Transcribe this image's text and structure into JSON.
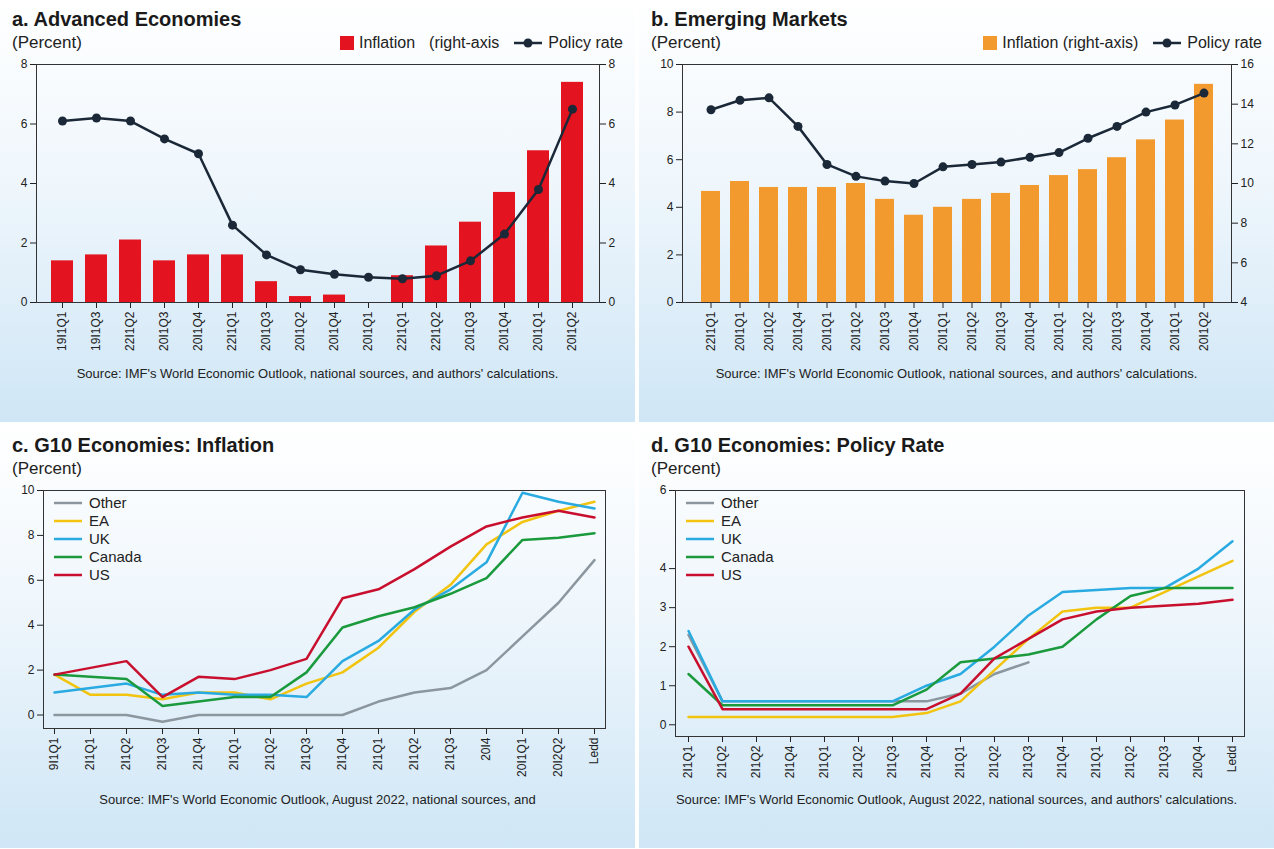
{
  "chart_data": [
    {
      "type": "bar",
      "title": "a. Advanced Economies",
      "subtitle": "(Percent)",
      "caption": "Source: IMF's World Economic Outlook, national sources, and authors' calculations.",
      "annotations": [
        "(right-axis"
      ],
      "categories": [
        "19I1Q1",
        "19I1Q3",
        "22I1Q2",
        "20I1Q3",
        "20I1Q4",
        "22I1Q1",
        "20I1Q3",
        "20I1Q2",
        "20I1Q4",
        "20I1Q1",
        "22I1Q1",
        "22I1Q2",
        "20I1Q3",
        "20I1Q4",
        "20I1Q1",
        "20I1Q2"
      ],
      "series": [
        {
          "name": "Inflation",
          "type": "bar",
          "axis": "y2",
          "color": "#e3141f",
          "values": [
            1.4,
            1.6,
            2.1,
            1.4,
            1.6,
            1.6,
            0.7,
            0.2,
            0.25,
            0,
            0.9,
            1.9,
            2.7,
            3.7,
            5.1,
            7.4
          ]
        },
        {
          "name": "Policy rate",
          "type": "line",
          "marker": "circle",
          "color": "#1b2838",
          "values": [
            6.1,
            6.2,
            6.1,
            5.5,
            5.0,
            2.6,
            1.6,
            1.1,
            0.95,
            0.85,
            0.8,
            0.9,
            1.4,
            2.3,
            3.8,
            6.5
          ]
        }
      ],
      "ylim": [
        0,
        8
      ],
      "yticks": [
        0,
        2,
        4,
        6,
        8
      ],
      "y2lim": [
        0,
        8
      ],
      "y2ticks": [
        0,
        2,
        4,
        6,
        8
      ],
      "grid": false,
      "legend": "top-right"
    },
    {
      "type": "bar",
      "title": "b. Emerging Markets",
      "subtitle": "(Percent)",
      "caption": "Source: IMF's World Economic Outlook, national sources, and authors' calculations.",
      "categories": [
        "22I1Q1",
        "20I1Q1",
        "20I1Q2",
        "20I1Q4",
        "20I1Q1",
        "20I1Q2",
        "20I1Q3",
        "20I1Q4",
        "20I1Q1",
        "20I1Q2",
        "20I1Q3",
        "20I1Q4",
        "20I1Q1",
        "20I1Q2",
        "20I1Q3",
        "20I1Q4",
        "20I1Q1",
        "20I1Q2"
      ],
      "series": [
        {
          "name": "Inflation (right-axis)",
          "type": "bar",
          "axis": "y2",
          "color": "#f39a2e",
          "values": [
            9.6,
            10.1,
            9.8,
            9.8,
            9.8,
            10.0,
            9.2,
            8.4,
            8.8,
            9.2,
            9.5,
            9.9,
            10.4,
            10.7,
            11.3,
            12.2,
            13.2,
            15.0
          ]
        },
        {
          "name": "Policy rate",
          "type": "line",
          "marker": "circle",
          "color": "#1b2838",
          "values": [
            8.1,
            8.5,
            8.6,
            7.4,
            5.8,
            5.3,
            5.1,
            5.0,
            5.7,
            5.8,
            5.9,
            6.1,
            6.3,
            6.9,
            7.4,
            8.0,
            8.3,
            8.8
          ]
        }
      ],
      "ylim": [
        0,
        10
      ],
      "yticks": [
        0,
        2,
        4,
        6,
        8,
        10
      ],
      "y2lim": [
        4,
        16
      ],
      "y2ticks": [
        4,
        6,
        8,
        10,
        12,
        14,
        16
      ],
      "grid": false,
      "legend": "top-right"
    },
    {
      "type": "line",
      "title": "c. G10 Economies: Inflation",
      "subtitle": "(Percent)",
      "caption": "Source: IMF's World Economic Outlook, August 2022, national sources, and",
      "categories": [
        "9I1Q1",
        "2I1Q1",
        "2I1Q2",
        "2I1Q3",
        "2I1Q4",
        "2I1Q1",
        "2I1Q2",
        "2I1Q3",
        "2I1Q4",
        "2I1Q1",
        "2I1Q2",
        "2I1Q3",
        "20I4",
        "20I1Q1",
        "20I2Q2",
        "Ledd"
      ],
      "series": [
        {
          "name": "Other",
          "color": "#8c969f",
          "values": [
            0,
            0,
            0,
            -0.3,
            0,
            0,
            0,
            0,
            0,
            0.6,
            1.0,
            1.2,
            2.0,
            3.5,
            5.0,
            6.9
          ]
        },
        {
          "name": "EA",
          "color": "#f2c40f",
          "values": [
            1.8,
            0.9,
            0.9,
            0.7,
            1.0,
            1.0,
            0.7,
            1.4,
            1.9,
            3.0,
            4.6,
            5.8,
            7.6,
            8.6,
            9.1,
            9.5
          ]
        },
        {
          "name": "UK",
          "color": "#29abe2",
          "values": [
            1.0,
            1.2,
            1.4,
            0.9,
            1.0,
            0.9,
            0.9,
            0.8,
            2.4,
            3.3,
            4.7,
            5.6,
            6.8,
            9.9,
            9.5,
            9.2
          ]
        },
        {
          "name": "Canada",
          "color": "#1a9a3c",
          "values": [
            1.8,
            1.7,
            1.6,
            0.4,
            0.6,
            0.8,
            0.8,
            1.9,
            3.9,
            4.4,
            4.8,
            5.4,
            6.1,
            7.8,
            7.9,
            8.1
          ]
        },
        {
          "name": "US",
          "color": "#c8102e",
          "values": [
            1.8,
            2.1,
            2.4,
            0.8,
            1.7,
            1.6,
            2.0,
            2.5,
            5.2,
            5.6,
            6.5,
            7.5,
            8.4,
            8.8,
            9.1,
            8.8
          ]
        }
      ],
      "ylim": [
        -0.6,
        10
      ],
      "yticks": [
        0,
        2,
        4,
        6,
        8,
        10
      ],
      "grid": false,
      "legend": "top-left"
    },
    {
      "type": "line",
      "title": "d. G10 Economies: Policy Rate",
      "subtitle": "(Percent)",
      "caption": "Source: IMF's World Economic Outlook, August 2022, national sources, and authors' calculations.",
      "categories": [
        "2I1Q1",
        "2I1Q2",
        "2I1Q2",
        "2I1Q4",
        "2I1Q1",
        "2I1Q2",
        "2I1Q3",
        "2I1Q4",
        "2I1Q1",
        "2I1Q2",
        "2I1Q3",
        "2I1Q4",
        "2I1Q1",
        "2I1Q2",
        "2I1Q3",
        "2I0Q4",
        "Ledd"
      ],
      "series": [
        {
          "name": "Other",
          "color": "#8c969f",
          "values": [
            2.3,
            0.6,
            0.6,
            0.6,
            0.6,
            0.6,
            0.6,
            0.6,
            0.8,
            1.3,
            1.6,
            null,
            null,
            null,
            null,
            null,
            null
          ]
        },
        {
          "name": "EA",
          "color": "#f2c40f",
          "values": [
            0.2,
            0.2,
            0.2,
            0.2,
            0.2,
            0.2,
            0.2,
            0.3,
            0.6,
            1.4,
            2.2,
            2.9,
            3.0,
            3.0,
            3.4,
            3.8,
            4.2
          ]
        },
        {
          "name": "UK",
          "color": "#29abe2",
          "values": [
            2.4,
            0.6,
            0.6,
            0.6,
            0.6,
            0.6,
            0.6,
            1.0,
            1.3,
            2.0,
            2.8,
            3.4,
            3.45,
            3.5,
            3.5,
            4.0,
            4.7
          ]
        },
        {
          "name": "Canada",
          "color": "#1a9a3c",
          "values": [
            1.3,
            0.5,
            0.5,
            0.5,
            0.5,
            0.5,
            0.5,
            0.9,
            1.6,
            1.7,
            1.8,
            2.0,
            2.7,
            3.3,
            3.5,
            3.5,
            3.5
          ]
        },
        {
          "name": "US",
          "color": "#c8102e",
          "values": [
            2.0,
            0.4,
            0.4,
            0.4,
            0.4,
            0.4,
            0.4,
            0.4,
            0.8,
            1.7,
            2.2,
            2.7,
            2.9,
            3.0,
            3.05,
            3.1,
            3.2
          ]
        }
      ],
      "ylim": [
        -0.3,
        6
      ],
      "yticks": [
        0,
        1,
        2,
        3,
        4,
        6
      ],
      "grid": false,
      "legend": "top-left"
    }
  ]
}
